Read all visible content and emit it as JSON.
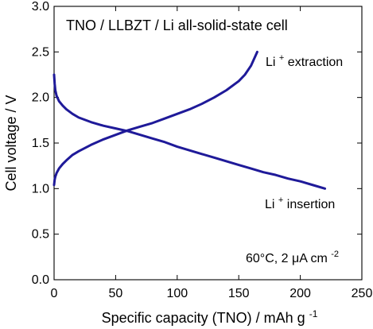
{
  "chart_data": {
    "type": "line",
    "title": "TNO / LLBZT / Li all-solid-state cell",
    "xlabel": "Specific capacity (TNO) / mAh g-1",
    "ylabel": "Cell voltage / V",
    "xlim": [
      0,
      250
    ],
    "ylim": [
      0.0,
      3.0
    ],
    "x_ticks": [
      0,
      50,
      100,
      150,
      200,
      250
    ],
    "y_ticks": [
      0.0,
      0.5,
      1.0,
      1.5,
      2.0,
      2.5,
      3.0
    ],
    "x_tick_labels": [
      "0",
      "50",
      "100",
      "150",
      "200",
      "250"
    ],
    "y_tick_labels": [
      "0.0",
      "0.5",
      "1.0",
      "1.5",
      "2.0",
      "2.5",
      "3.0"
    ],
    "condition_text": "60°C, 2 μA cm-2",
    "series": [
      {
        "name": "Li+ insertion",
        "points": [
          [
            0,
            2.25
          ],
          [
            0.5,
            2.15
          ],
          [
            1,
            2.08
          ],
          [
            2,
            2.02
          ],
          [
            4,
            1.96
          ],
          [
            7,
            1.91
          ],
          [
            10,
            1.87
          ],
          [
            15,
            1.82
          ],
          [
            20,
            1.78
          ],
          [
            30,
            1.73
          ],
          [
            40,
            1.69
          ],
          [
            50,
            1.66
          ],
          [
            60,
            1.63
          ],
          [
            70,
            1.59
          ],
          [
            80,
            1.55
          ],
          [
            90,
            1.51
          ],
          [
            100,
            1.46
          ],
          [
            110,
            1.42
          ],
          [
            120,
            1.38
          ],
          [
            130,
            1.34
          ],
          [
            140,
            1.3
          ],
          [
            150,
            1.26
          ],
          [
            160,
            1.22
          ],
          [
            170,
            1.18
          ],
          [
            180,
            1.15
          ],
          [
            190,
            1.11
          ],
          [
            200,
            1.08
          ],
          [
            210,
            1.04
          ],
          [
            220,
            1.0
          ]
        ]
      },
      {
        "name": "Li+ extraction",
        "points": [
          [
            0,
            1.04
          ],
          [
            0.5,
            1.1
          ],
          [
            1,
            1.13
          ],
          [
            2,
            1.17
          ],
          [
            4,
            1.22
          ],
          [
            7,
            1.27
          ],
          [
            10,
            1.31
          ],
          [
            15,
            1.37
          ],
          [
            20,
            1.41
          ],
          [
            30,
            1.48
          ],
          [
            40,
            1.54
          ],
          [
            50,
            1.59
          ],
          [
            60,
            1.64
          ],
          [
            70,
            1.68
          ],
          [
            80,
            1.72
          ],
          [
            90,
            1.77
          ],
          [
            100,
            1.82
          ],
          [
            110,
            1.87
          ],
          [
            120,
            1.93
          ],
          [
            130,
            2.0
          ],
          [
            140,
            2.08
          ],
          [
            150,
            2.18
          ],
          [
            155,
            2.25
          ],
          [
            160,
            2.35
          ],
          [
            165,
            2.5
          ]
        ]
      }
    ],
    "colors": {
      "curve": "#1f1a99",
      "title": "#1f1a99",
      "axis": "#000000"
    },
    "annotations": {
      "extraction": {
        "prefix": "Li",
        "sup": "+",
        "suffix": " extraction"
      },
      "insertion": {
        "prefix": "Li",
        "sup": "+",
        "suffix": " insertion"
      },
      "condition": {
        "main": "60°C, 2 μA cm",
        "sup": "-2"
      },
      "xlabel": {
        "main": "Specific capacity (TNO) / mAh g",
        "sup": "-1"
      }
    }
  }
}
